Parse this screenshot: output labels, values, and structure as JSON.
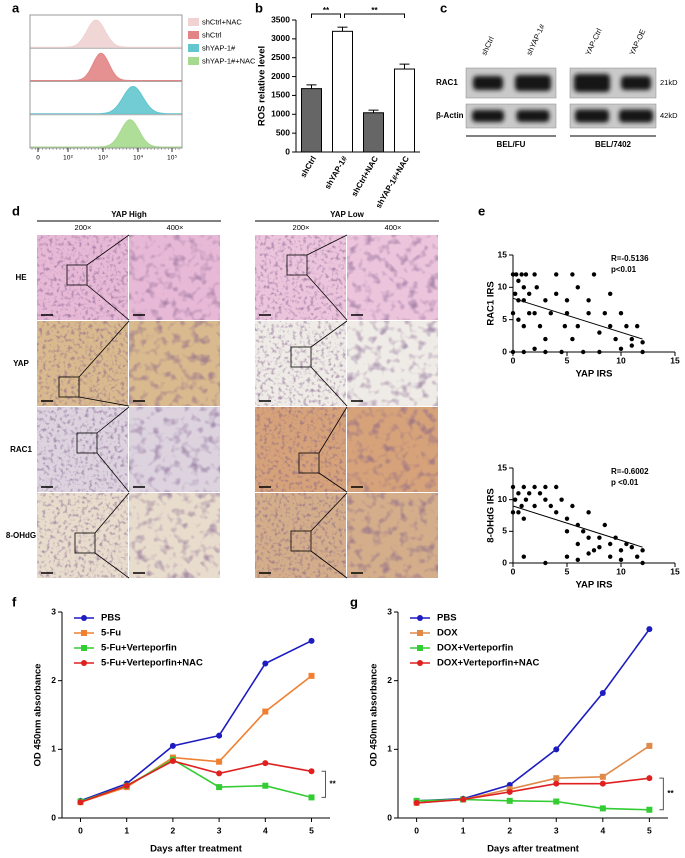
{
  "panel_a": {
    "panel": "a",
    "legend": [
      {
        "name": "shCtrl+NAC",
        "color": "#f0d2d2"
      },
      {
        "name": "shCtrl",
        "color": "#e38585"
      },
      {
        "name": "shYAP-1#",
        "color": "#62c6cf"
      },
      {
        "name": "shYAP-1#+NAC",
        "color": "#a6da8e"
      }
    ],
    "xticks": [
      "0",
      "10²",
      "10³",
      "10⁴",
      "10⁵"
    ]
  },
  "panel_c": {
    "panel": "c",
    "lanes": [
      "shCtrl",
      "shYAP-1#",
      "YAP-Ctrl",
      "YAP-OE"
    ],
    "rows": [
      "RAC1",
      "β-Actin"
    ],
    "sizes": [
      "21kD",
      "42kD"
    ],
    "cell_lines": [
      "BEL/FU",
      "BEL/7402"
    ]
  },
  "panel_d": {
    "panel": "d",
    "groups": [
      "YAP High",
      "YAP Low"
    ],
    "magnifications": [
      "200×",
      "400×"
    ],
    "rows": [
      "HE",
      "YAP",
      "RAC1",
      "8-OHdG"
    ]
  },
  "chart_data": [
    {
      "panel": "b",
      "type": "bar",
      "ylabel": "ROS relative level",
      "categories": [
        "shCtrl",
        "shYAP-1#",
        "shCtrl+NAC",
        "shYAP-1#+NAC"
      ],
      "values": [
        1680,
        3200,
        1040,
        2200
      ],
      "errors": [
        100,
        110,
        70,
        130
      ],
      "colors": [
        "#666666",
        "#ffffff",
        "#666666",
        "#ffffff"
      ],
      "ylim": [
        0,
        3500
      ],
      "yticks": [
        0,
        500,
        1000,
        1500,
        2000,
        2500,
        3000,
        3500
      ],
      "annotations": [
        "**",
        "**"
      ]
    },
    {
      "panel": "e",
      "type": "scatter",
      "xlabel": "YAP IRS",
      "ylabel": "RAC1 IRS",
      "annotations": [
        "R=-0.5136",
        "p<0.01"
      ],
      "color": "#000000",
      "x": [
        0,
        0.3,
        0.5,
        0.8,
        1,
        1.2,
        0.2,
        0.5,
        1,
        1.5,
        2,
        2.2,
        0,
        0.5,
        1,
        1.5,
        2,
        2.5,
        3,
        3,
        3.5,
        4,
        4,
        4.5,
        4.8,
        5,
        5,
        5.5,
        5.5,
        6,
        6,
        6.5,
        7,
        7,
        7.5,
        8,
        8,
        8.5,
        9,
        9,
        9.5,
        10,
        10,
        10.5,
        11,
        11,
        11.5,
        12,
        12,
        0,
        1,
        2,
        3
      ],
      "values": [
        12,
        12,
        11,
        12,
        10,
        12,
        9,
        8,
        8,
        9,
        12,
        10,
        6,
        5,
        4,
        6,
        6,
        4,
        8,
        2,
        6,
        12,
        9,
        0,
        4,
        8,
        6,
        12,
        2,
        10,
        4,
        0,
        8,
        6,
        12,
        3,
        0,
        6,
        4,
        9,
        2,
        6,
        0.5,
        4,
        1,
        2,
        4,
        1.5,
        0,
        0,
        0,
        0.5,
        0
      ],
      "fit": {
        "x": [
          0,
          12
        ],
        "values": [
          8.3,
          2.0
        ]
      },
      "xlim": [
        0,
        15
      ],
      "ylim": [
        0,
        15
      ],
      "xticks": [
        0,
        5,
        10,
        15
      ],
      "yticks": [
        0,
        5,
        10,
        15
      ]
    },
    {
      "type": "scatter",
      "xlabel": "YAP IRS",
      "ylabel": "8-OHdG IRS",
      "annotations": [
        "R=-0.6002",
        "p <0.01"
      ],
      "color": "#000000",
      "x": [
        0,
        0.5,
        1,
        1.5,
        0.2,
        0.8,
        1.2,
        2,
        2.5,
        0,
        0.5,
        1,
        2,
        3,
        3,
        3.5,
        4,
        4,
        4.5,
        5,
        5,
        5.5,
        6,
        6,
        6.5,
        7,
        7,
        7.5,
        8,
        8,
        8.5,
        9,
        9,
        9.5,
        10,
        10,
        10.5,
        11,
        11.5,
        12,
        12,
        1,
        3,
        5,
        6,
        7
      ],
      "values": [
        12,
        11,
        12,
        11,
        10,
        9,
        10,
        12,
        11,
        8,
        8,
        7,
        9,
        10,
        12,
        9,
        12,
        8,
        10,
        7,
        5,
        9,
        6,
        3,
        5,
        8,
        4,
        2,
        4,
        2.5,
        6,
        3,
        1,
        4,
        2,
        0.5,
        3,
        2.5,
        1,
        2,
        0,
        1,
        0,
        1,
        0.5,
        1.5
      ],
      "fit": {
        "x": [
          0,
          12
        ],
        "values": [
          9.0,
          2.5
        ]
      },
      "xlim": [
        0,
        15
      ],
      "ylim": [
        0,
        15
      ],
      "xticks": [
        0,
        5,
        10,
        15
      ],
      "yticks": [
        0,
        5,
        10,
        15
      ]
    },
    {
      "panel": "f",
      "type": "line",
      "xlabel": "Days after treatment",
      "ylabel": "OD 450nm absorbance",
      "x": [
        0,
        1,
        2,
        3,
        4,
        5
      ],
      "series": [
        {
          "name": "PBS",
          "color": "#1c1cc0",
          "marker": "circle",
          "values": [
            0.25,
            0.5,
            1.05,
            1.2,
            2.25,
            2.58
          ]
        },
        {
          "name": "5-Fu",
          "color": "#f08030",
          "marker": "square",
          "values": [
            0.23,
            0.45,
            0.88,
            0.82,
            1.55,
            2.07
          ]
        },
        {
          "name": "5-Fu+Verteporfin",
          "color": "#33cc33",
          "marker": "square",
          "values": [
            0.24,
            0.47,
            0.85,
            0.45,
            0.47,
            0.3
          ]
        },
        {
          "name": "5-Fu+Verteporfin+NAC",
          "color": "#e02020",
          "marker": "circle",
          "values": [
            0.23,
            0.47,
            0.83,
            0.65,
            0.8,
            0.68
          ]
        }
      ],
      "xlim": [
        -0.4,
        5.4
      ],
      "ylim": [
        0,
        3
      ],
      "xticks": [
        0,
        1,
        2,
        3,
        4,
        5
      ],
      "yticks": [
        0,
        1,
        2,
        3
      ],
      "annotations": [
        "**"
      ]
    },
    {
      "panel": "g",
      "type": "line",
      "xlabel": "Days after treatment",
      "ylabel": "OD 450nm absorbance",
      "x": [
        0,
        1,
        2,
        3,
        4,
        5
      ],
      "series": [
        {
          "name": "PBS",
          "color": "#1c1cc0",
          "marker": "circle",
          "values": [
            0.25,
            0.28,
            0.48,
            1.0,
            1.82,
            2.75
          ]
        },
        {
          "name": "DOX",
          "color": "#e08a4a",
          "marker": "square",
          "values": [
            0.22,
            0.27,
            0.42,
            0.58,
            0.6,
            1.05
          ]
        },
        {
          "name": "DOX+Verteporfin",
          "color": "#33cc33",
          "marker": "square",
          "values": [
            0.25,
            0.27,
            0.25,
            0.24,
            0.14,
            0.12
          ]
        },
        {
          "name": "DOX+Verteporfin+NAC",
          "color": "#e02020",
          "marker": "circle",
          "values": [
            0.22,
            0.27,
            0.38,
            0.5,
            0.5,
            0.58
          ]
        }
      ],
      "xlim": [
        -0.4,
        5.4
      ],
      "ylim": [
        0,
        3
      ],
      "xticks": [
        0,
        1,
        2,
        3,
        4,
        5
      ],
      "yticks": [
        0,
        1,
        2,
        3
      ],
      "annotations": [
        "**"
      ]
    }
  ]
}
